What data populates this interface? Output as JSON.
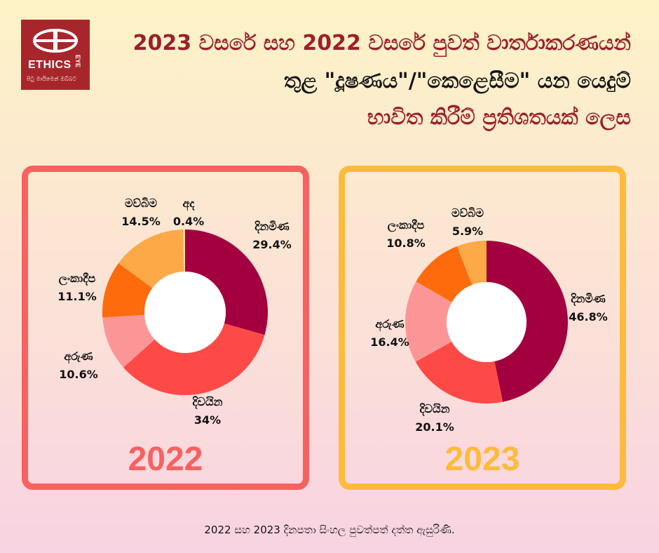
{
  "header": {
    "title_line1": "2023 වසරේ සහ 2022 වසරේ පුවත් වාර්තාකරණයන්",
    "title_line2": "තුළ \"දූෂණය\"/\"කෙළෙසීම\" යන යෙදුම්",
    "title_line3": "භාවිත කිරීම් ප්‍රතිශතයක් ලෙස"
  },
  "logo": {
    "name": "ETHICS",
    "sub": "EYE",
    "tagline": "පිටු මායිමෙන් ඔබ්බට",
    "color": "#a8262b"
  },
  "colors": {
    "panel_2022": "#f76160",
    "panel_2023": "#fdbb3c",
    "dinamina": "#a3003f",
    "divaina": "#fd4a47",
    "aruna": "#fc9696",
    "lankadeepa": "#fe6b0c",
    "mawbima": "#fea947",
    "ada": "#fed9a6"
  },
  "chart_data": [
    {
      "type": "pie",
      "title": "2022",
      "series": [
        {
          "name": "දිනමිණ",
          "label": "29.4%",
          "value": 29.4,
          "color": "#a3003f"
        },
        {
          "name": "දිවයින",
          "label": "34%",
          "value": 34,
          "color": "#fd4a47"
        },
        {
          "name": "අරුණ",
          "label": "10.6%",
          "value": 10.6,
          "color": "#fc9696"
        },
        {
          "name": "ලංකාදීප",
          "label": "11.1%",
          "value": 11.1,
          "color": "#fe6b0c"
        },
        {
          "name": "මව්බිම",
          "label": "14.5%",
          "value": 14.5,
          "color": "#fea947"
        },
        {
          "name": "අද",
          "label": "0.4%",
          "value": 0.4,
          "color": "#fed9a6"
        }
      ]
    },
    {
      "type": "pie",
      "title": "2023",
      "series": [
        {
          "name": "දිනමිණ",
          "label": "46.8%",
          "value": 46.8,
          "color": "#a3003f"
        },
        {
          "name": "දිවයින",
          "label": "20.1%",
          "value": 20.1,
          "color": "#fd4a47"
        },
        {
          "name": "අරුණ",
          "label": "16.4%",
          "value": 16.4,
          "color": "#fc9696"
        },
        {
          "name": "ලංකාදීප",
          "label": "10.8%",
          "value": 10.8,
          "color": "#fe6b0c"
        },
        {
          "name": "මව්බිම",
          "label": "5.9%",
          "value": 5.9,
          "color": "#fea947"
        }
      ]
    }
  ],
  "footer": {
    "source": "2022 සහ 2023 දිනපතා සිංහල පුවත්පත් දත්ත ඇසුරිණි."
  }
}
